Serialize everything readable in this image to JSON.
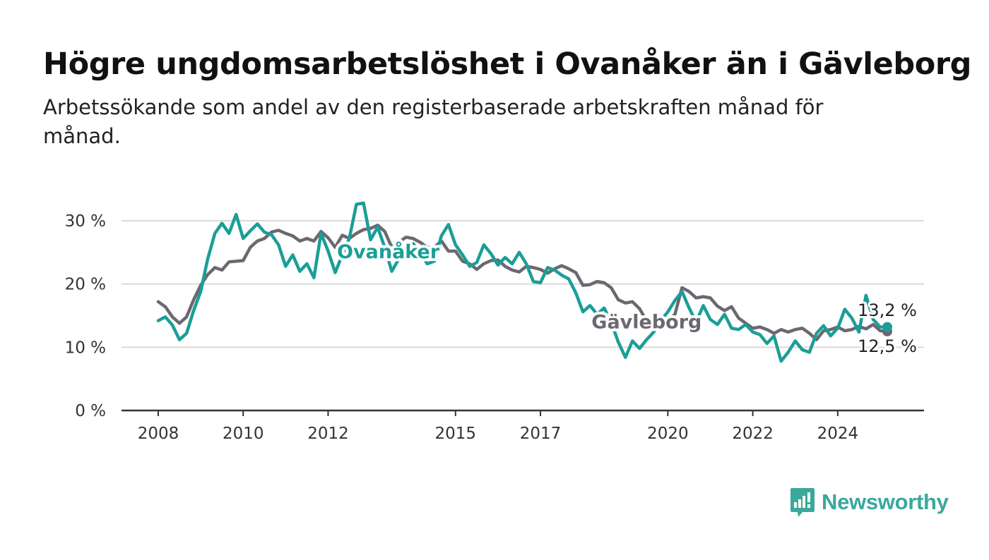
{
  "header": {
    "title": "Högre ungdomsarbetslöshet i Ovanåker än i Gävleborg",
    "subtitle": "Arbetssökande som andel av den registerbaserade arbetskraften månad för månad."
  },
  "branding": {
    "logo_text": "Newsworthy",
    "logo_icon": "bar-chart-speech-bubble-icon",
    "color": "#3aa89b"
  },
  "chart_data": {
    "type": "line",
    "title": "",
    "xlabel": "",
    "ylabel": "",
    "ylim": [
      0,
      30
    ],
    "xlim": [
      "2008-01",
      "2025-03"
    ],
    "grid": true,
    "legend": "inline labels",
    "y_ticks": [
      {
        "value": 0,
        "label": "0 %"
      },
      {
        "value": 10,
        "label": "10 %"
      },
      {
        "value": 20,
        "label": "20 %"
      },
      {
        "value": 30,
        "label": "30 %"
      }
    ],
    "x_ticks": [
      {
        "value": "2008-01",
        "label": "2008"
      },
      {
        "value": "2010-01",
        "label": "2010"
      },
      {
        "value": "2012-01",
        "label": "2012"
      },
      {
        "value": "2015-01",
        "label": "2015"
      },
      {
        "value": "2017-01",
        "label": "2017"
      },
      {
        "value": "2020-01",
        "label": "2020"
      },
      {
        "value": "2022-01",
        "label": "2022"
      },
      {
        "value": "2024-01",
        "label": "2024"
      }
    ],
    "series": [
      {
        "name": "Gävleborg",
        "color": "#6b6870",
        "end_label": "12,5 %",
        "points": [
          [
            "2008-01",
            17.2
          ],
          [
            "2008-03",
            16.4
          ],
          [
            "2008-05",
            14.8
          ],
          [
            "2008-07",
            13.8
          ],
          [
            "2008-09",
            14.8
          ],
          [
            "2008-11",
            17.5
          ],
          [
            "2009-01",
            19.8
          ],
          [
            "2009-03",
            21.5
          ],
          [
            "2009-05",
            22.6
          ],
          [
            "2009-07",
            22.2
          ],
          [
            "2009-09",
            23.5
          ],
          [
            "2009-11",
            23.6
          ],
          [
            "2010-01",
            23.7
          ],
          [
            "2010-03",
            25.8
          ],
          [
            "2010-05",
            26.8
          ],
          [
            "2010-07",
            27.2
          ],
          [
            "2010-09",
            28.2
          ],
          [
            "2010-11",
            28.5
          ],
          [
            "2011-01",
            28.0
          ],
          [
            "2011-03",
            27.6
          ],
          [
            "2011-05",
            26.8
          ],
          [
            "2011-07",
            27.2
          ],
          [
            "2011-09",
            26.8
          ],
          [
            "2011-11",
            28.3
          ],
          [
            "2012-01",
            27.3
          ],
          [
            "2012-03",
            25.8
          ],
          [
            "2012-05",
            27.7
          ],
          [
            "2012-07",
            27.2
          ],
          [
            "2012-09",
            28.0
          ],
          [
            "2012-11",
            28.6
          ],
          [
            "2013-01",
            28.8
          ],
          [
            "2013-03",
            29.3
          ],
          [
            "2013-05",
            28.3
          ],
          [
            "2013-07",
            25.8
          ],
          [
            "2013-09",
            26.6
          ],
          [
            "2013-11",
            27.4
          ],
          [
            "2014-01",
            27.2
          ],
          [
            "2014-03",
            26.6
          ],
          [
            "2014-05",
            25.8
          ],
          [
            "2014-07",
            25.8
          ],
          [
            "2014-09",
            26.8
          ],
          [
            "2014-11",
            25.2
          ],
          [
            "2015-01",
            25.2
          ],
          [
            "2015-03",
            23.6
          ],
          [
            "2015-05",
            23.2
          ],
          [
            "2015-07",
            22.3
          ],
          [
            "2015-09",
            23.2
          ],
          [
            "2015-11",
            23.7
          ],
          [
            "2016-01",
            23.8
          ],
          [
            "2016-03",
            22.8
          ],
          [
            "2016-05",
            22.2
          ],
          [
            "2016-07",
            21.9
          ],
          [
            "2016-09",
            22.8
          ],
          [
            "2016-11",
            22.6
          ],
          [
            "2017-01",
            22.3
          ],
          [
            "2017-03",
            21.7
          ],
          [
            "2017-05",
            22.4
          ],
          [
            "2017-07",
            22.9
          ],
          [
            "2017-09",
            22.4
          ],
          [
            "2017-11",
            21.8
          ],
          [
            "2018-01",
            19.8
          ],
          [
            "2018-03",
            19.9
          ],
          [
            "2018-05",
            20.4
          ],
          [
            "2018-07",
            20.2
          ],
          [
            "2018-09",
            19.4
          ],
          [
            "2018-11",
            17.5
          ],
          [
            "2019-01",
            17.0
          ],
          [
            "2019-03",
            17.2
          ],
          [
            "2019-05",
            16.1
          ],
          [
            "2019-07",
            14.2
          ],
          [
            "2019-09",
            13.8
          ],
          [
            "2019-11",
            14.0
          ],
          [
            "2020-01",
            14.2
          ],
          [
            "2020-03",
            15.2
          ],
          [
            "2020-05",
            19.4
          ],
          [
            "2020-07",
            18.8
          ],
          [
            "2020-09",
            17.8
          ],
          [
            "2020-11",
            18.0
          ],
          [
            "2021-01",
            17.8
          ],
          [
            "2021-03",
            16.5
          ],
          [
            "2021-05",
            15.8
          ],
          [
            "2021-07",
            16.4
          ],
          [
            "2021-09",
            14.6
          ],
          [
            "2021-11",
            13.8
          ],
          [
            "2022-01",
            13.0
          ],
          [
            "2022-03",
            13.2
          ],
          [
            "2022-05",
            12.8
          ],
          [
            "2022-07",
            12.2
          ],
          [
            "2022-09",
            12.8
          ],
          [
            "2022-11",
            12.4
          ],
          [
            "2023-01",
            12.8
          ],
          [
            "2023-03",
            13.0
          ],
          [
            "2023-05",
            12.2
          ],
          [
            "2023-07",
            11.2
          ],
          [
            "2023-09",
            12.6
          ],
          [
            "2023-11",
            12.8
          ],
          [
            "2024-01",
            13.2
          ],
          [
            "2024-03",
            12.6
          ],
          [
            "2024-05",
            12.8
          ],
          [
            "2024-07",
            13.3
          ],
          [
            "2024-09",
            12.9
          ],
          [
            "2024-11",
            13.6
          ],
          [
            "2025-01",
            12.6
          ],
          [
            "2025-03",
            12.5
          ]
        ]
      },
      {
        "name": "Ovanåker",
        "color": "#1a9e97",
        "end_label": "13,2 %",
        "points": [
          [
            "2008-01",
            14.2
          ],
          [
            "2008-03",
            14.8
          ],
          [
            "2008-05",
            13.5
          ],
          [
            "2008-07",
            11.2
          ],
          [
            "2008-09",
            12.2
          ],
          [
            "2008-11",
            15.8
          ],
          [
            "2009-01",
            18.8
          ],
          [
            "2009-03",
            24.0
          ],
          [
            "2009-05",
            28.0
          ],
          [
            "2009-07",
            29.6
          ],
          [
            "2009-09",
            28.0
          ],
          [
            "2009-11",
            31.0
          ],
          [
            "2010-01",
            27.2
          ],
          [
            "2010-03",
            28.4
          ],
          [
            "2010-05",
            29.5
          ],
          [
            "2010-07",
            28.2
          ],
          [
            "2010-09",
            27.8
          ],
          [
            "2010-11",
            26.2
          ],
          [
            "2011-01",
            22.8
          ],
          [
            "2011-03",
            24.6
          ],
          [
            "2011-05",
            22.0
          ],
          [
            "2011-07",
            23.2
          ],
          [
            "2011-09",
            21.0
          ],
          [
            "2011-11",
            28.0
          ],
          [
            "2012-01",
            25.2
          ],
          [
            "2012-03",
            21.8
          ],
          [
            "2012-05",
            24.6
          ],
          [
            "2012-07",
            27.2
          ],
          [
            "2012-09",
            32.6
          ],
          [
            "2012-11",
            32.8
          ],
          [
            "2013-01",
            27.0
          ],
          [
            "2013-03",
            29.0
          ],
          [
            "2013-05",
            25.8
          ],
          [
            "2013-07",
            22.0
          ],
          [
            "2013-09",
            24.0
          ],
          [
            "2013-11",
            25.5
          ],
          [
            "2014-01",
            26.4
          ],
          [
            "2014-03",
            25.0
          ],
          [
            "2014-05",
            23.2
          ],
          [
            "2014-07",
            23.6
          ],
          [
            "2014-09",
            27.6
          ],
          [
            "2014-11",
            29.4
          ],
          [
            "2015-01",
            26.2
          ],
          [
            "2015-03",
            24.6
          ],
          [
            "2015-05",
            22.8
          ],
          [
            "2015-07",
            23.4
          ],
          [
            "2015-09",
            26.2
          ],
          [
            "2015-11",
            24.8
          ],
          [
            "2016-01",
            23.0
          ],
          [
            "2016-03",
            24.2
          ],
          [
            "2016-05",
            23.2
          ],
          [
            "2016-07",
            25.0
          ],
          [
            "2016-09",
            23.2
          ],
          [
            "2016-11",
            20.4
          ],
          [
            "2017-01",
            20.2
          ],
          [
            "2017-03",
            22.6
          ],
          [
            "2017-05",
            22.2
          ],
          [
            "2017-07",
            21.4
          ],
          [
            "2017-09",
            20.8
          ],
          [
            "2017-11",
            18.6
          ],
          [
            "2018-01",
            15.6
          ],
          [
            "2018-03",
            16.6
          ],
          [
            "2018-05",
            15.2
          ],
          [
            "2018-07",
            16.2
          ],
          [
            "2018-09",
            14.0
          ],
          [
            "2018-11",
            10.8
          ],
          [
            "2019-01",
            8.4
          ],
          [
            "2019-03",
            11.0
          ],
          [
            "2019-05",
            9.8
          ],
          [
            "2019-07",
            11.2
          ],
          [
            "2019-09",
            12.4
          ],
          [
            "2019-11",
            14.2
          ],
          [
            "2020-01",
            15.6
          ],
          [
            "2020-03",
            17.4
          ],
          [
            "2020-05",
            18.8
          ],
          [
            "2020-07",
            16.2
          ],
          [
            "2020-09",
            14.0
          ],
          [
            "2020-11",
            16.6
          ],
          [
            "2021-01",
            14.4
          ],
          [
            "2021-03",
            13.6
          ],
          [
            "2021-05",
            15.2
          ],
          [
            "2021-07",
            13.0
          ],
          [
            "2021-09",
            12.8
          ],
          [
            "2021-11",
            13.6
          ],
          [
            "2022-01",
            12.4
          ],
          [
            "2022-03",
            12.0
          ],
          [
            "2022-05",
            10.6
          ],
          [
            "2022-07",
            11.8
          ],
          [
            "2022-09",
            7.8
          ],
          [
            "2022-11",
            9.2
          ],
          [
            "2023-01",
            11.0
          ],
          [
            "2023-03",
            9.6
          ],
          [
            "2023-05",
            9.2
          ],
          [
            "2023-07",
            12.2
          ],
          [
            "2023-09",
            13.4
          ],
          [
            "2023-11",
            11.8
          ],
          [
            "2024-01",
            13.0
          ],
          [
            "2024-03",
            16.0
          ],
          [
            "2024-05",
            14.6
          ],
          [
            "2024-07",
            12.4
          ],
          [
            "2024-09",
            18.2
          ],
          [
            "2024-11",
            14.4
          ],
          [
            "2025-01",
            13.2
          ],
          [
            "2025-03",
            13.2
          ]
        ]
      }
    ]
  }
}
